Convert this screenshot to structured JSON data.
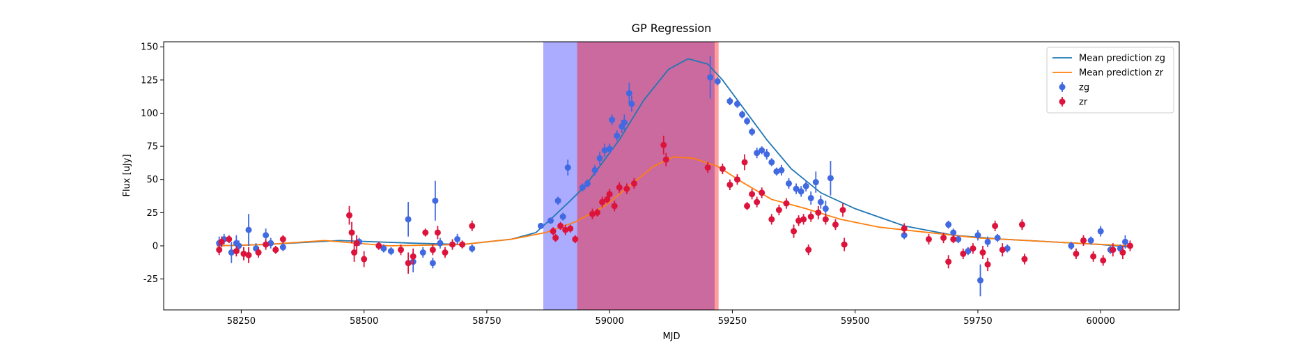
{
  "chart_data": {
    "type": "errorbar",
    "title": "GP Regression",
    "x_label": "MJD",
    "y_label": "Flux [uJy]",
    "xlim": [
      58092,
      60160
    ],
    "ylim": [
      -48.3,
      153.8
    ],
    "xticks": [
      58250,
      58500,
      58750,
      59000,
      59250,
      59500,
      59750,
      60000
    ],
    "yticks": [
      -25,
      0,
      25,
      50,
      75,
      100,
      125,
      150
    ],
    "legend": "upper right",
    "spans": [
      {
        "xmin": 58865,
        "xmax": 59214,
        "color": "#0000ff",
        "alpha": 0.33
      },
      {
        "xmin": 58934,
        "xmax": 59222,
        "color": "#ff0000",
        "alpha": 0.38
      }
    ],
    "series": [
      {
        "name": "Mean prediction zg",
        "kind": "line",
        "color": "#1f77b4",
        "x": [
          58200,
          58300,
          58450,
          58600,
          58700,
          58800,
          58850,
          58880,
          58920,
          58950,
          58990,
          59020,
          59070,
          59120,
          59160,
          59200,
          59230,
          59270,
          59320,
          59370,
          59430,
          59500,
          59600,
          59700,
          59800,
          59900,
          60000,
          60060
        ],
        "values": [
          0,
          1,
          4,
          2,
          1,
          5,
          10,
          20,
          34,
          45,
          65,
          80,
          110,
          133,
          141,
          137,
          125,
          105,
          80,
          58,
          40,
          28,
          15,
          8,
          5,
          3,
          1,
          -1
        ]
      },
      {
        "name": "Mean prediction zr",
        "kind": "line",
        "color": "#ff7f0e",
        "x": [
          58200,
          58300,
          58420,
          58550,
          58700,
          58800,
          58870,
          58930,
          58990,
          59040,
          59090,
          59130,
          59170,
          59220,
          59270,
          59330,
          59400,
          59470,
          59550,
          59650,
          59750,
          59850,
          59950,
          60060
        ],
        "values": [
          0,
          1,
          4,
          0,
          1,
          5,
          10,
          18,
          30,
          45,
          60,
          67,
          66,
          60,
          48,
          35,
          28,
          20,
          14,
          10,
          6,
          4,
          2,
          0
        ]
      },
      {
        "name": "zg",
        "kind": "points",
        "color": "#4169e1",
        "x": [
          58205,
          58215,
          58230,
          58240,
          58245,
          58265,
          58280,
          58300,
          58310,
          58335,
          58490,
          58540,
          58555,
          58590,
          58600,
          58620,
          58640,
          58645,
          58655,
          58690,
          58720,
          58860,
          58880,
          58895,
          58905,
          58915,
          58945,
          58955,
          58970,
          58980,
          58990,
          59000,
          59005,
          59015,
          59025,
          59030,
          59040,
          59045,
          59205,
          59220,
          59245,
          59260,
          59270,
          59280,
          59290,
          59300,
          59310,
          59320,
          59330,
          59340,
          59350,
          59365,
          59380,
          59390,
          59400,
          59410,
          59420,
          59430,
          59440,
          59450,
          59600,
          59690,
          59700,
          59710,
          59730,
          59750,
          59755,
          59770,
          59790,
          59810,
          59940,
          59980,
          60000,
          60020,
          60040,
          60050
        ],
        "values": [
          2,
          5,
          -5,
          2,
          0,
          12,
          -2,
          8,
          2,
          -1,
          3,
          -2,
          -4,
          20,
          -12,
          -5,
          -13,
          34,
          2,
          5,
          -2,
          15,
          19,
          34,
          22,
          59,
          44,
          47,
          57,
          66,
          72,
          73,
          95,
          83,
          90,
          93,
          115,
          107,
          127,
          124,
          109,
          107,
          99,
          94,
          86,
          70,
          72,
          69,
          63,
          56,
          57,
          47,
          43,
          41,
          45,
          36,
          48,
          33,
          28,
          51,
          8,
          16,
          10,
          5,
          -4,
          8,
          -26,
          3,
          6,
          -2,
          0,
          4,
          11,
          -3,
          -2,
          3
        ],
        "errors": [
          5,
          4,
          8,
          6,
          4,
          12,
          4,
          5,
          4,
          3,
          3,
          3,
          3,
          13,
          8,
          4,
          4,
          15,
          4,
          4,
          3,
          2,
          2,
          3,
          3,
          6,
          3,
          3,
          4,
          5,
          5,
          4,
          4,
          4,
          5,
          6,
          8,
          6,
          16,
          3,
          3,
          3,
          3,
          3,
          3,
          4,
          3,
          4,
          3,
          3,
          4,
          4,
          4,
          4,
          4,
          5,
          8,
          5,
          6,
          13,
          3,
          3,
          3,
          3,
          3,
          4,
          12,
          4,
          3,
          3,
          3,
          3,
          4,
          3,
          3,
          5
        ]
      },
      {
        "name": "zr",
        "kind": "points",
        "color": "#dc143c",
        "x": [
          58205,
          58210,
          58225,
          58240,
          58255,
          58265,
          58285,
          58300,
          58320,
          58335,
          58470,
          58475,
          58480,
          58485,
          58500,
          58530,
          58575,
          58590,
          58600,
          58625,
          58640,
          58650,
          58665,
          58680,
          58700,
          58720,
          58885,
          58890,
          58900,
          58910,
          58920,
          58930,
          58965,
          58975,
          58985,
          58995,
          59000,
          59010,
          59020,
          59035,
          59050,
          59110,
          59115,
          59200,
          59230,
          59245,
          59260,
          59275,
          59280,
          59290,
          59300,
          59310,
          59330,
          59345,
          59360,
          59375,
          59385,
          59395,
          59405,
          59410,
          59425,
          59440,
          59460,
          59475,
          59478,
          59600,
          59650,
          59680,
          59690,
          59700,
          59720,
          59740,
          59760,
          59770,
          59785,
          59800,
          59840,
          59845,
          59950,
          59965,
          59985,
          60005,
          60025,
          60045,
          60060
        ],
        "values": [
          -3,
          3,
          5,
          -4,
          -6,
          -7,
          -5,
          1,
          -3,
          5,
          23,
          10,
          -5,
          2,
          -10,
          0,
          -3,
          -13,
          -8,
          10,
          -3,
          10,
          -5,
          1,
          1,
          15,
          11,
          6,
          15,
          12,
          13,
          5,
          24,
          25,
          33,
          35,
          39,
          30,
          44,
          43,
          47,
          76,
          65,
          59,
          58,
          46,
          50,
          63,
          30,
          39,
          33,
          40,
          20,
          27,
          32,
          11,
          19,
          20,
          -3,
          22,
          25,
          20,
          16,
          27,
          1,
          13,
          5,
          6,
          -12,
          5,
          -6,
          -2,
          -5,
          -14,
          15,
          -3,
          16,
          -10,
          -6,
          4,
          -8,
          -11,
          -3,
          -5,
          0
        ],
        "errors": [
          4,
          4,
          3,
          4,
          5,
          6,
          4,
          4,
          3,
          3,
          7,
          8,
          7,
          6,
          6,
          3,
          4,
          8,
          6,
          3,
          4,
          5,
          4,
          4,
          3,
          4,
          3,
          3,
          3,
          4,
          3,
          3,
          4,
          3,
          4,
          3,
          4,
          4,
          4,
          4,
          4,
          7,
          5,
          4,
          4,
          4,
          4,
          6,
          3,
          4,
          4,
          4,
          4,
          4,
          4,
          5,
          4,
          4,
          4,
          4,
          5,
          4,
          4,
          5,
          5,
          4,
          4,
          4,
          5,
          3,
          4,
          4,
          5,
          5,
          4,
          5,
          4,
          4,
          4,
          4,
          4,
          4,
          5,
          5,
          4
        ]
      }
    ]
  }
}
